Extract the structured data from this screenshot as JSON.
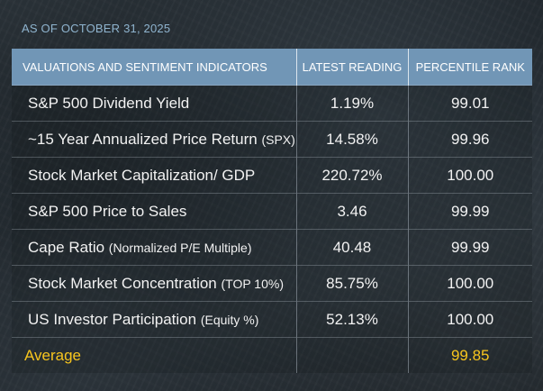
{
  "as_of": "AS OF OCTOBER 31, 2025",
  "header": {
    "indicator": "VALUATIONS AND SENTIMENT INDICATORS",
    "reading": "LATEST READING",
    "rank": "PERCENTILE RANK"
  },
  "rows": [
    {
      "label": "S&P 500 Dividend Yield",
      "suffix": "",
      "reading": "1.19%",
      "rank": "99.01"
    },
    {
      "label": "~15 Year Annualized Price Return ",
      "suffix": "(SPX)",
      "reading": "14.58%",
      "rank": "99.96"
    },
    {
      "label": "Stock Market Capitalization/ GDP",
      "suffix": "",
      "reading": "220.72%",
      "rank": "100.00"
    },
    {
      "label": "S&P 500 Price to Sales",
      "suffix": "",
      "reading": "3.46",
      "rank": "99.99"
    },
    {
      "label": "Cape Ratio ",
      "suffix": "(Normalized P/E Multiple)",
      "reading": "40.48",
      "rank": "99.99"
    },
    {
      "label": "Stock Market Concentration ",
      "suffix": "(TOP 10%)",
      "reading": "85.75%",
      "rank": "100.00"
    },
    {
      "label": "US Investor Participation ",
      "suffix": "(Equity %)",
      "reading": "52.13%",
      "rank": "100.00"
    }
  ],
  "average": {
    "label": "Average",
    "reading": "",
    "rank": "99.85"
  },
  "colors": {
    "header_bg": "#7196b6",
    "as_of_text": "#8fb4cf",
    "average_text": "#f7c51e"
  }
}
